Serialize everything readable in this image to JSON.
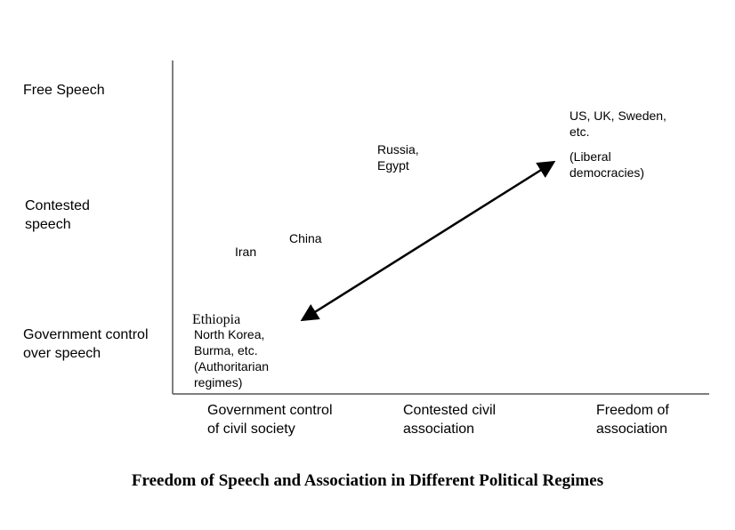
{
  "y_axis_labels": {
    "top": "Free Speech",
    "middle_line1": "Contested",
    "middle_line2": "speech",
    "bottom_line1": "Government control",
    "bottom_line2": "over speech"
  },
  "x_axis_labels": {
    "left_line1": "Government control",
    "left_line2": "of civil society",
    "middle_line1": "Contested civil",
    "middle_line2": "association",
    "right_line1": "Freedom of",
    "right_line2": "association"
  },
  "points": {
    "liberal_line1": "US, UK, Sweden,",
    "liberal_line2": "etc.",
    "liberal_line3": "(Liberal",
    "liberal_line4": "democracies)",
    "russia_line1": "Russia,",
    "russia_line2": "Egypt",
    "china": "China",
    "iran": "Iran",
    "ethiopia": "Ethiopia",
    "auth_line1": "North Korea,",
    "auth_line2": "Burma, etc.",
    "auth_line3": "(Authoritarian",
    "auth_line4": "regimes)"
  },
  "caption": "Freedom of Speech and Association in Different Political Regimes"
}
